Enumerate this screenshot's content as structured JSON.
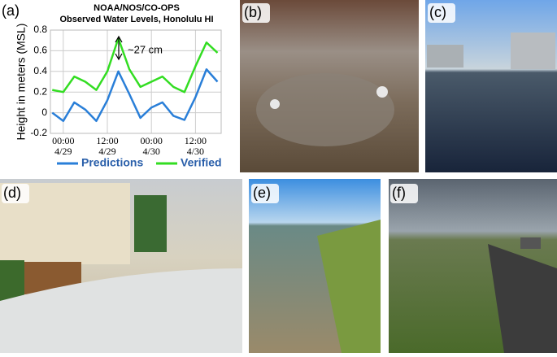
{
  "chart_data": {
    "type": "line",
    "title": "NOAA/NOS/CO-OPS",
    "subtitle": "Observed Water Levels, Honolulu HI",
    "y_label": "Height in meters (MSL)",
    "annotation": "~27 cm",
    "x": [
      -3,
      0,
      3,
      6,
      9,
      12,
      15,
      18,
      21,
      24,
      27,
      30,
      33,
      36,
      39,
      42
    ],
    "xlim": [
      -3.5,
      43
    ],
    "xticks": [
      {
        "value": 0,
        "label": "00:00 4/29"
      },
      {
        "value": 12,
        "label": "12:00 4/29"
      },
      {
        "value": 24,
        "label": "00:00 4/30"
      },
      {
        "value": 36,
        "label": "12:00 4/30"
      }
    ],
    "ylim": [
      -0.2,
      0.8
    ],
    "yticks": [
      -0.2,
      0,
      0.2,
      0.4,
      0.6,
      0.8
    ],
    "grid": true,
    "series": [
      {
        "name": "Predictions",
        "color": "#2a7fd8",
        "values": [
          0.0,
          -0.08,
          0.1,
          0.03,
          -0.08,
          0.12,
          0.4,
          0.18,
          -0.05,
          0.05,
          0.1,
          -0.03,
          -0.07,
          0.15,
          0.42,
          0.3
        ]
      },
      {
        "name": "Verified",
        "color": "#33dd22",
        "values": [
          0.22,
          0.2,
          0.35,
          0.3,
          0.22,
          0.4,
          0.72,
          0.42,
          0.25,
          0.3,
          0.35,
          0.25,
          0.2,
          0.45,
          0.68,
          0.58
        ]
      }
    ]
  },
  "panel_labels": [
    "(a)",
    "(b)",
    "(c)",
    "(d)",
    "(e)",
    "(f)"
  ]
}
